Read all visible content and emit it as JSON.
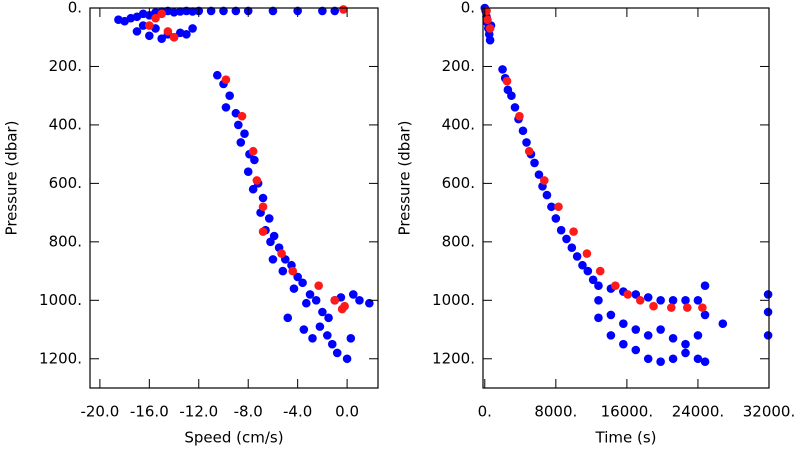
{
  "chart_data": [
    {
      "type": "scatter",
      "x_label": "Speed (cm/s)",
      "y_label": "Pressure (dbar)",
      "xlim": [
        -20.8,
        2.5
      ],
      "ylim": [
        1300,
        0
      ],
      "inverted_y": true,
      "xticks": [
        {
          "value": -20,
          "label": "-20.0"
        },
        {
          "value": -16,
          "label": "-16.0"
        },
        {
          "value": -12,
          "label": "-12.0"
        },
        {
          "value": -8,
          "label": "-8.0"
        },
        {
          "value": -4,
          "label": "-4.0"
        },
        {
          "value": 0,
          "label": "0.0"
        }
      ],
      "yticks": [
        {
          "value": 0,
          "label": "0."
        },
        {
          "value": 200,
          "label": "200."
        },
        {
          "value": 400,
          "label": "400."
        },
        {
          "value": 600,
          "label": "600."
        },
        {
          "value": 800,
          "label": "800."
        },
        {
          "value": 1000,
          "label": "1000."
        },
        {
          "value": 1200,
          "label": "1200."
        }
      ],
      "series": [
        {
          "color": "#0000ff",
          "x": [
            -18.5,
            -18,
            -17.5,
            -17,
            -16.5,
            -16,
            -15.5,
            -15,
            -14.5,
            -14,
            -13.5,
            -13,
            -12.5,
            -12,
            -11,
            -10,
            -9,
            -8,
            -6,
            -4,
            -2,
            -1,
            -17,
            -16,
            -15,
            -14,
            -13,
            -12.5,
            -16.5,
            -15.5,
            -14.5,
            -13.5,
            -10.5,
            -10,
            -9.5,
            -9.8,
            -9,
            -8.8,
            -8.3,
            -8.6,
            -7.9,
            -7.5,
            -8,
            -7.2,
            -7.6,
            -6.8,
            -7,
            -6.3,
            -6.6,
            -5.9,
            -6.2,
            -5.5,
            -5,
            -4.5,
            -5.2,
            -4,
            -3.6,
            -4.3,
            -3,
            -2.5,
            -3.3,
            -2,
            -1.5,
            -1,
            -0.5,
            0.5,
            1,
            1.8,
            -3.5,
            -2.8,
            -1.2,
            0,
            -0.8,
            -1.6,
            -4.8,
            -6,
            -2.2,
            0.3
          ],
          "values": [
            40,
            45,
            35,
            30,
            20,
            25,
            15,
            12,
            10,
            15,
            12,
            10,
            12,
            10,
            10,
            10,
            10,
            10,
            10,
            10,
            10,
            10,
            80,
            95,
            105,
            100,
            90,
            70,
            60,
            70,
            90,
            85,
            230,
            260,
            300,
            340,
            360,
            400,
            430,
            460,
            500,
            520,
            560,
            600,
            620,
            650,
            700,
            720,
            760,
            780,
            800,
            820,
            860,
            880,
            900,
            920,
            940,
            960,
            980,
            1000,
            1010,
            1040,
            1060,
            1000,
            990,
            980,
            1000,
            1010,
            1100,
            1130,
            1150,
            1200,
            1180,
            1120,
            1060,
            860,
            1090,
            1130
          ]
        },
        {
          "color": "#ff1a1a",
          "x": [
            -15.5,
            -16,
            -14.5,
            -14,
            -15,
            -0.3,
            -9.8,
            -8.5,
            -7.6,
            -7.3,
            -6.8,
            -6.8,
            -5.3,
            -4.4,
            -2.3,
            -1,
            -0.2,
            -0.4
          ],
          "values": [
            35,
            60,
            80,
            100,
            20,
            5,
            245,
            370,
            490,
            590,
            680,
            765,
            840,
            900,
            950,
            1000,
            1020,
            1030
          ]
        }
      ]
    },
    {
      "type": "scatter",
      "x_label": "Time (s)",
      "y_label": "Pressure (dbar)",
      "xlim": [
        -200,
        32000
      ],
      "ylim": [
        1300,
        0
      ],
      "inverted_y": true,
      "xticks": [
        {
          "value": 0,
          "label": "0."
        },
        {
          "value": 8000,
          "label": "8000."
        },
        {
          "value": 16000,
          "label": "16000."
        },
        {
          "value": 24000,
          "label": "24000."
        },
        {
          "value": 32000,
          "label": "32000."
        }
      ],
      "yticks": [
        {
          "value": 0,
          "label": "0."
        },
        {
          "value": 200,
          "label": "200."
        },
        {
          "value": 400,
          "label": "400."
        },
        {
          "value": 600,
          "label": "600."
        },
        {
          "value": 800,
          "label": "800."
        },
        {
          "value": 1000,
          "label": "1000."
        },
        {
          "value": 1200,
          "label": "1200."
        }
      ],
      "series": [
        {
          "color": "#0000ff",
          "x": [
            0,
            100,
            200,
            300,
            400,
            500,
            600,
            700,
            2000,
            2300,
            2600,
            3000,
            3400,
            3800,
            4300,
            4700,
            5200,
            5600,
            6100,
            6500,
            7000,
            7500,
            8000,
            8600,
            9200,
            9800,
            10400,
            11000,
            11600,
            12200,
            12800,
            12800,
            12800,
            14200,
            14200,
            14200,
            15600,
            15600,
            15600,
            17000,
            17000,
            17000,
            18400,
            18400,
            18400,
            19800,
            19800,
            19800,
            21200,
            21200,
            21200,
            22600,
            22600,
            22600,
            24000,
            24000,
            24000,
            24800,
            24800,
            24800,
            26800,
            31900,
            31900,
            31900
          ],
          "values": [
            0,
            10,
            30,
            50,
            70,
            90,
            110,
            60,
            210,
            240,
            280,
            300,
            340,
            380,
            420,
            460,
            500,
            530,
            570,
            610,
            640,
            680,
            720,
            760,
            790,
            820,
            850,
            880,
            900,
            930,
            950,
            1000,
            1060,
            960,
            1050,
            1120,
            970,
            1080,
            1150,
            980,
            1100,
            1170,
            990,
            1120,
            1200,
            1000,
            1100,
            1210,
            1000,
            1130,
            1200,
            1000,
            1150,
            1180,
            1000,
            1120,
            1200,
            950,
            1050,
            1210,
            1080,
            980,
            1040,
            1120
          ]
        },
        {
          "color": "#ff1a1a",
          "x": [
            200,
            300,
            600,
            2500,
            3900,
            5000,
            6700,
            8300,
            10000,
            11500,
            13000,
            14700,
            16100,
            17500,
            19000,
            21000,
            22800,
            24500
          ],
          "values": [
            10,
            40,
            70,
            250,
            370,
            490,
            590,
            680,
            765,
            840,
            900,
            950,
            980,
            1000,
            1020,
            1025,
            1025,
            1025
          ]
        }
      ]
    }
  ]
}
